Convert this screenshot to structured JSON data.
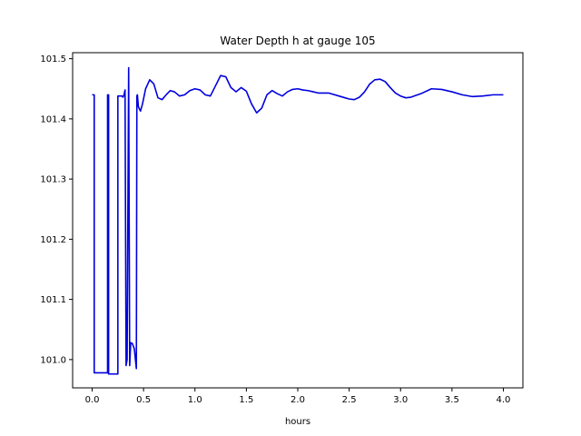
{
  "chart_data": {
    "type": "line",
    "title": "Water Depth h at gauge 105",
    "xlabel": "hours",
    "ylabel": "",
    "xlim": [
      -0.19,
      4.19
    ],
    "ylim": [
      100.953,
      101.51
    ],
    "xticks": [
      0.0,
      0.5,
      1.0,
      1.5,
      2.0,
      2.5,
      3.0,
      3.5,
      4.0
    ],
    "xtick_labels": [
      "0.0",
      "0.5",
      "1.0",
      "1.5",
      "2.0",
      "2.5",
      "3.0",
      "3.5",
      "4.0"
    ],
    "yticks": [
      101.0,
      101.1,
      101.2,
      101.3,
      101.4,
      101.5
    ],
    "ytick_labels": [
      "101.0",
      "101.1",
      "101.2",
      "101.3",
      "101.4",
      "101.5"
    ],
    "grid": false,
    "series": [
      {
        "color": "#0000dd",
        "x": [
          0.0,
          0.02,
          0.02,
          0.15,
          0.15,
          0.16,
          0.16,
          0.25,
          0.25,
          0.29,
          0.3,
          0.31,
          0.32,
          0.33,
          0.34,
          0.355,
          0.365,
          0.375,
          0.39,
          0.41,
          0.43,
          0.435,
          0.44,
          0.45,
          0.47,
          0.49,
          0.52,
          0.56,
          0.6,
          0.64,
          0.68,
          0.72,
          0.76,
          0.8,
          0.85,
          0.9,
          0.95,
          1.0,
          1.05,
          1.1,
          1.15,
          1.2,
          1.25,
          1.3,
          1.35,
          1.4,
          1.45,
          1.5,
          1.55,
          1.6,
          1.65,
          1.7,
          1.75,
          1.8,
          1.85,
          1.9,
          1.95,
          2.0,
          2.05,
          2.1,
          2.15,
          2.2,
          2.3,
          2.4,
          2.5,
          2.55,
          2.6,
          2.65,
          2.7,
          2.75,
          2.8,
          2.85,
          2.9,
          2.95,
          3.0,
          3.05,
          3.1,
          3.15,
          3.2,
          3.3,
          3.4,
          3.5,
          3.6,
          3.7,
          3.8,
          3.9,
          4.0
        ],
        "y": [
          101.44,
          101.44,
          100.978,
          100.978,
          101.44,
          101.44,
          100.976,
          100.976,
          101.438,
          101.438,
          101.436,
          101.44,
          101.448,
          100.99,
          101.0,
          101.485,
          100.99,
          101.028,
          101.027,
          101.018,
          100.985,
          101.438,
          101.44,
          101.42,
          101.413,
          101.425,
          101.45,
          101.465,
          101.458,
          101.435,
          101.432,
          101.44,
          101.447,
          101.445,
          101.438,
          101.44,
          101.447,
          101.45,
          101.448,
          101.44,
          101.438,
          101.455,
          101.472,
          101.47,
          101.452,
          101.445,
          101.452,
          101.446,
          101.425,
          101.41,
          101.418,
          101.44,
          101.447,
          101.442,
          101.438,
          101.445,
          101.449,
          101.45,
          101.448,
          101.447,
          101.445,
          101.443,
          101.443,
          101.438,
          101.433,
          101.432,
          101.436,
          101.445,
          101.458,
          101.465,
          101.466,
          101.462,
          101.452,
          101.443,
          101.438,
          101.435,
          101.436,
          101.439,
          101.442,
          101.45,
          101.449,
          101.445,
          101.44,
          101.437,
          101.438,
          101.44,
          101.44
        ]
      }
    ]
  }
}
